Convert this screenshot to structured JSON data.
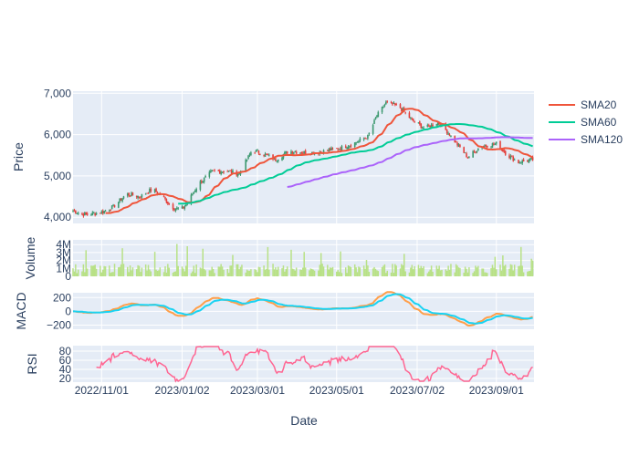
{
  "chart_data": {
    "type": "candlestick-with-indicators",
    "xlabel": "Date",
    "x_ticks": [
      "2022/11/01",
      "2023/01/02",
      "2023/03/01",
      "2023/05/01",
      "2023/07/02",
      "2023/09/01"
    ],
    "x_range": [
      "2022/10/10",
      "2023/09/30"
    ],
    "colors": {
      "increasing": "#3d9970",
      "decreasing": "#e4403c",
      "sma20": "#ef553b",
      "sma60": "#00cc96",
      "sma120": "#ab63fa",
      "volume": "#b8e186",
      "macd": "#ff9f4a",
      "macd_signal": "#19d3f3",
      "rsi": "#ff6692",
      "plot_bg": "#e5ecf6"
    },
    "panels": {
      "price": {
        "ylabel": "Price",
        "yrange": [
          3850,
          7050
        ],
        "y_ticks": [
          {
            "value": 4000,
            "label": "4,000"
          },
          {
            "value": 5000,
            "label": "5,000"
          },
          {
            "value": 6000,
            "label": "6,000"
          },
          {
            "value": 7000,
            "label": "7,000"
          }
        ],
        "close_anchors": [
          [
            "2022/10/10",
            4150
          ],
          [
            "2022/10/20",
            4060
          ],
          [
            "2022/11/01",
            4120
          ],
          [
            "2022/11/10",
            4250
          ],
          [
            "2022/11/20",
            4560
          ],
          [
            "2022/12/01",
            4500
          ],
          [
            "2022/12/10",
            4680
          ],
          [
            "2022/12/18",
            4500
          ],
          [
            "2022/12/25",
            4250
          ],
          [
            "2023/01/01",
            4180
          ],
          [
            "2023/01/05",
            4300
          ],
          [
            "2023/01/15",
            4820
          ],
          [
            "2023/01/25",
            5100
          ],
          [
            "2023/02/05",
            5120
          ],
          [
            "2023/02/15",
            5050
          ],
          [
            "2023/02/25",
            5630
          ],
          [
            "2023/03/05",
            5540
          ],
          [
            "2023/03/15",
            5400
          ],
          [
            "2023/03/25",
            5600
          ],
          [
            "2023/04/05",
            5570
          ],
          [
            "2023/04/15",
            5560
          ],
          [
            "2023/04/25",
            5620
          ],
          [
            "2023/05/05",
            5680
          ],
          [
            "2023/05/15",
            5800
          ],
          [
            "2023/05/25",
            5950
          ],
          [
            "2023/06/01",
            6450
          ],
          [
            "2023/06/08",
            6770
          ],
          [
            "2023/06/18",
            6680
          ],
          [
            "2023/06/28",
            6350
          ],
          [
            "2023/07/08",
            6150
          ],
          [
            "2023/07/18",
            6300
          ],
          [
            "2023/07/25",
            6080
          ],
          [
            "2023/08/01",
            5800
          ],
          [
            "2023/08/10",
            5450
          ],
          [
            "2023/08/20",
            5720
          ],
          [
            "2023/09/01",
            5780
          ],
          [
            "2023/09/10",
            5500
          ],
          [
            "2023/09/18",
            5330
          ],
          [
            "2023/09/30",
            5400
          ]
        ],
        "series": [
          {
            "name": "SMA20",
            "color": "#ef553b"
          },
          {
            "name": "SMA60",
            "color": "#00cc96"
          },
          {
            "name": "SMA120",
            "color": "#ab63fa"
          }
        ]
      },
      "volume": {
        "ylabel": "Volume",
        "yrange": [
          0,
          4600000
        ],
        "y_ticks": [
          {
            "value": 0,
            "label": "0"
          },
          {
            "value": 1000000,
            "label": "1M"
          },
          {
            "value": 2000000,
            "label": "2M"
          },
          {
            "value": 3000000,
            "label": "3M"
          },
          {
            "value": 4000000,
            "label": "4M"
          }
        ]
      },
      "macd": {
        "ylabel": "MACD",
        "yrange": [
          -260,
          270
        ],
        "y_ticks": [
          {
            "value": -200,
            "label": "−200"
          },
          {
            "value": 0,
            "label": "0"
          },
          {
            "value": 200,
            "label": "200"
          }
        ]
      },
      "rsi": {
        "ylabel": "RSI",
        "yrange": [
          12,
          92
        ],
        "y_ticks": [
          {
            "value": 20,
            "label": "20"
          },
          {
            "value": 40,
            "label": "40"
          },
          {
            "value": 60,
            "label": "60"
          },
          {
            "value": 80,
            "label": "80"
          }
        ]
      }
    }
  }
}
